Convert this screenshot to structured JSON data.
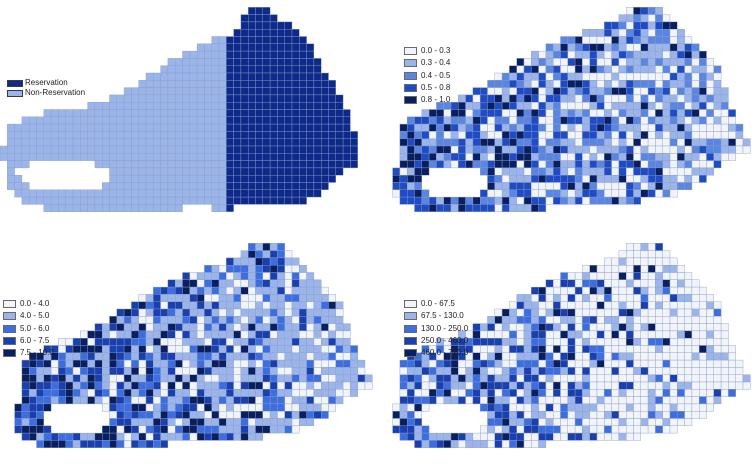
{
  "figure": {
    "panels": [
      {
        "id": "reservation",
        "legend": [
          {
            "label": "Reservation",
            "color": "#0d2a8a"
          },
          {
            "label": "Non-Reservation",
            "color": "#9bb5ea"
          }
        ]
      },
      {
        "id": "ratio",
        "legend": [
          {
            "label": "0.0 - 0.3",
            "color": "#f2f4fb"
          },
          {
            "label": "0.3 - 0.4",
            "color": "#9bb5ea"
          },
          {
            "label": "0.4 - 0.5",
            "color": "#5a86e2"
          },
          {
            "label": "0.5 - 0.8",
            "color": "#1f4bc4"
          },
          {
            "label": "0.8 - 1.0",
            "color": "#0a1f5f"
          }
        ]
      },
      {
        "id": "value-10",
        "legend": [
          {
            "label": "0.0 - 4.0",
            "color": "#f2f4fb"
          },
          {
            "label": "4.0 - 5.0",
            "color": "#9bb5ea"
          },
          {
            "label": "5.0 - 6.0",
            "color": "#3c6ee0"
          },
          {
            "label": "6.0 - 7.5",
            "color": "#1a3fae"
          },
          {
            "label": "7.5 - 10.0",
            "color": "#0a1f5f"
          }
        ]
      },
      {
        "id": "value-720",
        "legend": [
          {
            "label": "0.0 - 67.5",
            "color": "#f2f4fb"
          },
          {
            "label": "67.5 - 130.0",
            "color": "#9bb5ea"
          },
          {
            "label": "130.0 - 250.0",
            "color": "#3c6ee0"
          },
          {
            "label": "250.0 - 460.0",
            "color": "#1a3fae"
          },
          {
            "label": "460.0 - 720.0",
            "color": "#0a1f5f"
          }
        ]
      }
    ],
    "grid_color": "#8a9cc4"
  }
}
